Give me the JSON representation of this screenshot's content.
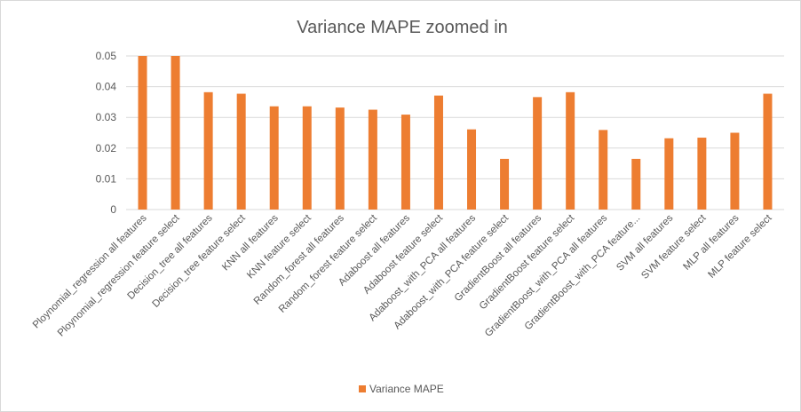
{
  "chart_data": {
    "type": "bar",
    "title": "Variance MAPE zoomed in",
    "xlabel": "",
    "ylabel": "",
    "ylim": [
      0,
      0.05
    ],
    "yticks": [
      "0",
      "0.01",
      "0.02",
      "0.03",
      "0.04",
      "0.05"
    ],
    "grid": true,
    "legend_position": "bottom",
    "bar_color": "#ED7D31",
    "categories": [
      "Ploynomial_regression all features",
      "Ploynomial_regression feature select",
      "Decision_tree all features",
      "Decision_tree feature select",
      "KNN all features",
      "KNN feature select",
      "Random_forest all features",
      "Random_forest feature select",
      "Adaboost all features",
      "Adaboost feature select",
      "Adaboost_with_PCA all features",
      "Adaboost_with_PCA feature select",
      "GradientBoost all features",
      "GradientBoost feature select",
      "GradientBoost_with_PCA all features",
      "GradientBoost_with_PCA feature...",
      "SVM all features",
      "SVM feature select",
      "MLP all features",
      "MLP feature select"
    ],
    "series": [
      {
        "name": "Variance MAPE",
        "values": [
          0.05,
          0.05,
          0.0382,
          0.0377,
          0.0336,
          0.0336,
          0.0332,
          0.0325,
          0.0309,
          0.0371,
          0.0261,
          0.0165,
          0.0366,
          0.0382,
          0.0259,
          0.0165,
          0.0232,
          0.0234,
          0.025,
          0.0377
        ]
      }
    ]
  }
}
